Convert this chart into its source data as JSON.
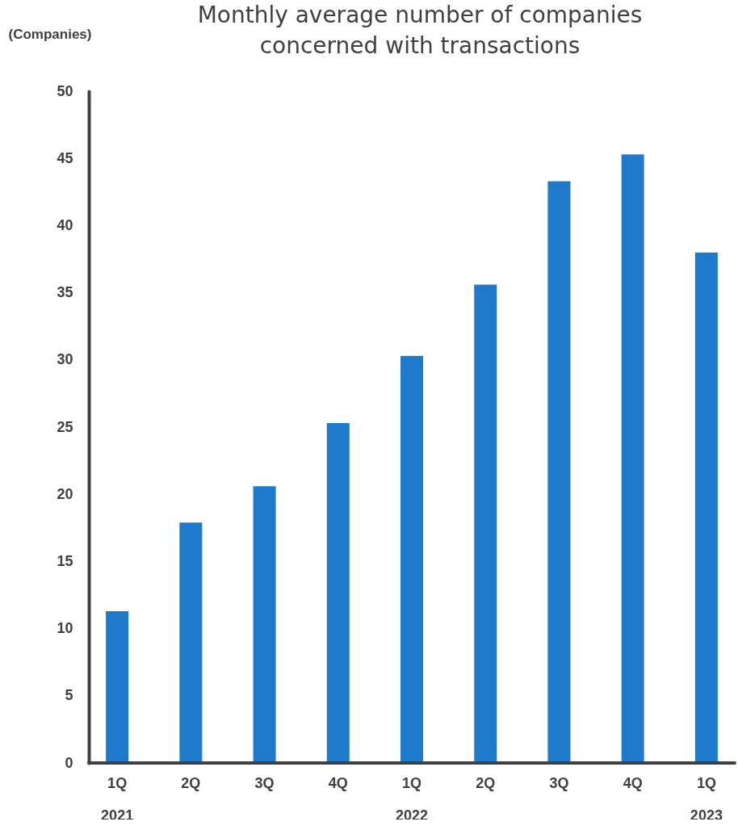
{
  "chart_data": {
    "type": "bar",
    "title": "Monthly average number of companies concerned with transactions",
    "ylabel": "(Companies)",
    "categories": [
      "1Q\n2021",
      "2Q",
      "3Q",
      "4Q",
      "1Q\n2022",
      "2Q",
      "3Q",
      "4Q",
      "1Q\n2023"
    ],
    "values": [
      11.3,
      17.9,
      20.6,
      25.3,
      30.3,
      35.6,
      43.3,
      45.3,
      38.0
    ],
    "color": "#1f7acc",
    "ylim": [
      0,
      50
    ],
    "yticks": [
      0,
      5,
      10,
      15,
      20,
      25,
      30,
      35,
      40,
      45,
      50
    ],
    "grid": false
  }
}
